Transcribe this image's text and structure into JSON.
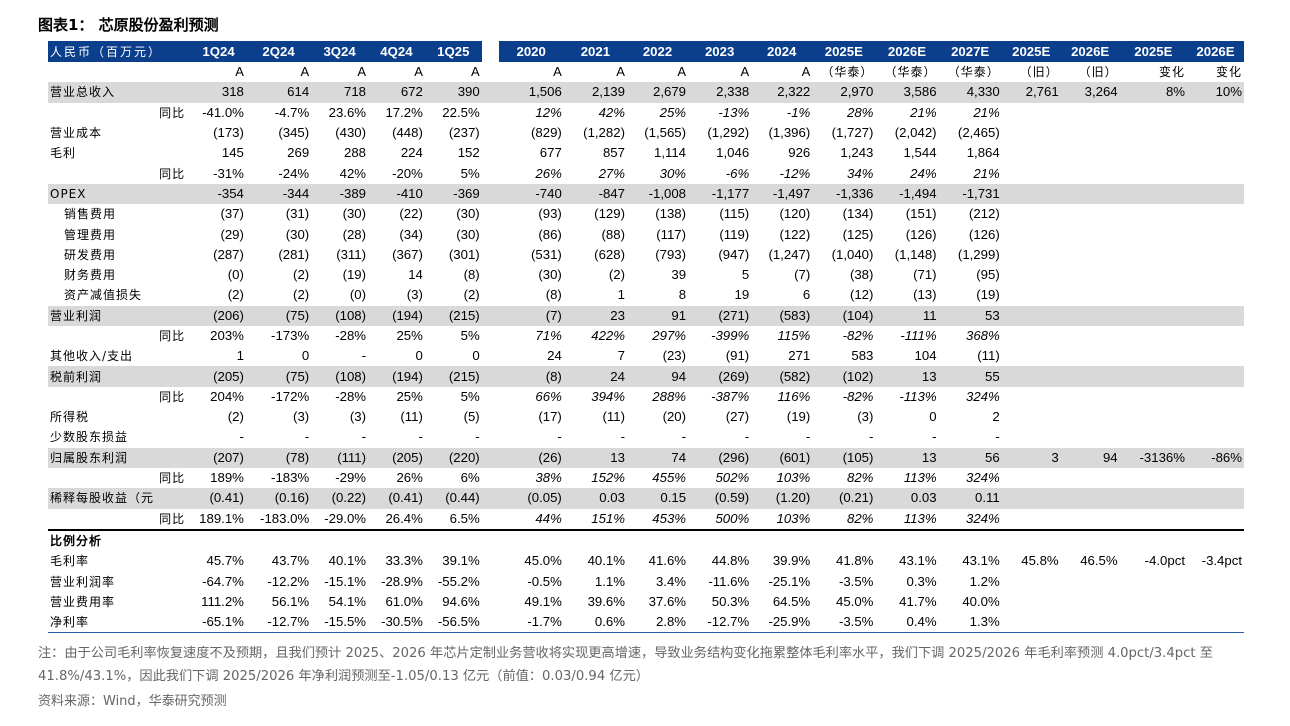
{
  "title": "图表1： 芯原股份盈利预测",
  "header_row1": [
    "人民币（百万元）",
    "1Q24",
    "2Q24",
    "3Q24",
    "4Q24",
    "1Q25",
    "",
    "2020",
    "2021",
    "2022",
    "2023",
    "2024",
    "2025E",
    "2026E",
    "2027E",
    "2025E",
    "2026E",
    "2025E",
    "2026E"
  ],
  "header_row2": [
    "",
    "A",
    "A",
    "A",
    "A",
    "A",
    "",
    "A",
    "A",
    "A",
    "A",
    "A",
    "（华泰）",
    "（华泰）",
    "（华泰）",
    "（旧）",
    "（旧）",
    "变化",
    "变化"
  ],
  "rows": [
    {
      "label": "营业总收入",
      "style": "lbl shade",
      "cells": [
        "318",
        "614",
        "718",
        "672",
        "390",
        "",
        "1,506",
        "2,139",
        "2,679",
        "2,338",
        "2,322",
        "2,970",
        "3,586",
        "4,330",
        "2,761",
        "3,264",
        "8%",
        "10%"
      ]
    },
    {
      "label": "同比",
      "style": "sub",
      "cells": [
        "-41.0%",
        "-4.7%",
        "23.6%",
        "17.2%",
        "22.5%",
        "",
        "12%",
        "42%",
        "25%",
        "-13%",
        "-1%",
        "28%",
        "21%",
        "21%",
        "",
        "",
        "",
        ""
      ],
      "italic_annual": true
    },
    {
      "label": "营业成本",
      "style": "lbl",
      "cells": [
        "(173)",
        "(345)",
        "(430)",
        "(448)",
        "(237)",
        "",
        "(829)",
        "(1,282)",
        "(1,565)",
        "(1,292)",
        "(1,396)",
        "(1,727)",
        "(2,042)",
        "(2,465)",
        "",
        "",
        "",
        ""
      ]
    },
    {
      "label": "毛利",
      "style": "lbl",
      "cells": [
        "145",
        "269",
        "288",
        "224",
        "152",
        "",
        "677",
        "857",
        "1,114",
        "1,046",
        "926",
        "1,243",
        "1,544",
        "1,864",
        "",
        "",
        "",
        ""
      ]
    },
    {
      "label": "同比",
      "style": "sub",
      "cells": [
        "-31%",
        "-24%",
        "42%",
        "-20%",
        "5%",
        "",
        "26%",
        "27%",
        "30%",
        "-6%",
        "-12%",
        "34%",
        "24%",
        "21%",
        "",
        "",
        "",
        ""
      ],
      "italic_annual": true
    },
    {
      "label": "OPEX",
      "style": "lbl shade",
      "cells": [
        "-354",
        "-344",
        "-389",
        "-410",
        "-369",
        "",
        "-740",
        "-847",
        "-1,008",
        "-1,177",
        "-1,497",
        "-1,336",
        "-1,494",
        "-1,731",
        "",
        "",
        "",
        ""
      ]
    },
    {
      "label": "销售费用",
      "style": "ind",
      "cells": [
        "(37)",
        "(31)",
        "(30)",
        "(22)",
        "(30)",
        "",
        "(93)",
        "(129)",
        "(138)",
        "(115)",
        "(120)",
        "(134)",
        "(151)",
        "(212)",
        "",
        "",
        "",
        ""
      ]
    },
    {
      "label": "管理费用",
      "style": "ind",
      "cells": [
        "(29)",
        "(30)",
        "(28)",
        "(34)",
        "(30)",
        "",
        "(86)",
        "(88)",
        "(117)",
        "(119)",
        "(122)",
        "(125)",
        "(126)",
        "(126)",
        "",
        "",
        "",
        ""
      ]
    },
    {
      "label": "研发费用",
      "style": "ind",
      "cells": [
        "(287)",
        "(281)",
        "(311)",
        "(367)",
        "(301)",
        "",
        "(531)",
        "(628)",
        "(793)",
        "(947)",
        "(1,247)",
        "(1,040)",
        "(1,148)",
        "(1,299)",
        "",
        "",
        "",
        ""
      ]
    },
    {
      "label": "财务费用",
      "style": "ind",
      "cells": [
        "(0)",
        "(2)",
        "(19)",
        "14",
        "(8)",
        "",
        "(30)",
        "(2)",
        "39",
        "5",
        "(7)",
        "(38)",
        "(71)",
        "(95)",
        "",
        "",
        "",
        ""
      ]
    },
    {
      "label": "资产减值损失",
      "style": "ind",
      "cells": [
        "(2)",
        "(2)",
        "(0)",
        "(3)",
        "(2)",
        "",
        "(8)",
        "1",
        "8",
        "19",
        "6",
        "(12)",
        "(13)",
        "(19)",
        "",
        "",
        "",
        ""
      ]
    },
    {
      "label": "营业利润",
      "style": "lbl shade",
      "cells": [
        "(206)",
        "(75)",
        "(108)",
        "(194)",
        "(215)",
        "",
        "(7)",
        "23",
        "91",
        "(271)",
        "(583)",
        "(104)",
        "11",
        "53",
        "",
        "",
        "",
        ""
      ]
    },
    {
      "label": "同比",
      "style": "sub",
      "cells": [
        "203%",
        "-173%",
        "-28%",
        "25%",
        "5%",
        "",
        "71%",
        "422%",
        "297%",
        "-399%",
        "115%",
        "-82%",
        "-111%",
        "368%",
        "",
        "",
        "",
        ""
      ],
      "italic_annual": true
    },
    {
      "label": "其他收入/支出",
      "style": "lbl",
      "cells": [
        "1",
        "0",
        "-",
        "0",
        "0",
        "",
        "24",
        "7",
        "(23)",
        "(91)",
        "271",
        "583",
        "104",
        "(11)",
        "",
        "",
        "",
        ""
      ]
    },
    {
      "label": "税前利润",
      "style": "lbl shade",
      "cells": [
        "(205)",
        "(75)",
        "(108)",
        "(194)",
        "(215)",
        "",
        "(8)",
        "24",
        "94",
        "(269)",
        "(582)",
        "(102)",
        "13",
        "55",
        "",
        "",
        "",
        ""
      ]
    },
    {
      "label": "同比",
      "style": "sub",
      "cells": [
        "204%",
        "-172%",
        "-28%",
        "25%",
        "5%",
        "",
        "66%",
        "394%",
        "288%",
        "-387%",
        "116%",
        "-82%",
        "-113%",
        "324%",
        "",
        "",
        "",
        ""
      ],
      "italic_annual": true
    },
    {
      "label": "所得税",
      "style": "lbl",
      "cells": [
        "(2)",
        "(3)",
        "(3)",
        "(11)",
        "(5)",
        "",
        "(17)",
        "(11)",
        "(20)",
        "(27)",
        "(19)",
        "(3)",
        "0",
        "2",
        "",
        "",
        "",
        ""
      ]
    },
    {
      "label": "少数股东损益",
      "style": "lbl",
      "cells": [
        "-",
        "-",
        "-",
        "-",
        "-",
        "",
        "-",
        "-",
        "-",
        "-",
        "-",
        "-",
        "-",
        "-",
        "",
        "",
        "",
        ""
      ]
    },
    {
      "label": "归属股东利润",
      "style": "lbl shade",
      "cells": [
        "(207)",
        "(78)",
        "(111)",
        "(205)",
        "(220)",
        "",
        "(26)",
        "13",
        "74",
        "(296)",
        "(601)",
        "(105)",
        "13",
        "56",
        "3",
        "94",
        "-3136%",
        "-86%"
      ]
    },
    {
      "label": "同比",
      "style": "sub",
      "cells": [
        "189%",
        "-183%",
        "-29%",
        "26%",
        "6%",
        "",
        "38%",
        "152%",
        "455%",
        "502%",
        "103%",
        "82%",
        "113%",
        "324%",
        "",
        "",
        "",
        ""
      ],
      "italic_annual": true
    },
    {
      "label": "稀释每股收益（元",
      "style": "lbl shade",
      "cells": [
        "(0.41)",
        "(0.16)",
        "(0.22)",
        "(0.41)",
        "(0.44)",
        "",
        "(0.05)",
        "0.03",
        "0.15",
        "(0.59)",
        "(1.20)",
        "(0.21)",
        "0.03",
        "0.11",
        "",
        "",
        "",
        ""
      ]
    },
    {
      "label": "同比",
      "style": "sub",
      "cells": [
        "189.1%",
        "-183.0%",
        "-29.0%",
        "26.4%",
        "6.5%",
        "",
        "44%",
        "151%",
        "453%",
        "500%",
        "103%",
        "82%",
        "113%",
        "324%",
        "",
        "",
        "",
        ""
      ],
      "italic_annual": true
    },
    {
      "label": "比例分析",
      "style": "lbl section",
      "cells": [
        "",
        "",
        "",
        "",
        "",
        "",
        "",
        "",
        "",
        "",
        "",
        "",
        "",
        "",
        "",
        "",
        "",
        ""
      ]
    },
    {
      "label": "毛利率",
      "style": "lbl",
      "cells": [
        "45.7%",
        "43.7%",
        "40.1%",
        "33.3%",
        "39.1%",
        "",
        "45.0%",
        "40.1%",
        "41.6%",
        "44.8%",
        "39.9%",
        "41.8%",
        "43.1%",
        "43.1%",
        "45.8%",
        "46.5%",
        "-4.0pct",
        "-3.4pct"
      ]
    },
    {
      "label": "营业利润率",
      "style": "lbl",
      "cells": [
        "-64.7%",
        "-12.2%",
        "-15.1%",
        "-28.9%",
        "-55.2%",
        "",
        "-0.5%",
        "1.1%",
        "3.4%",
        "-11.6%",
        "-25.1%",
        "-3.5%",
        "0.3%",
        "1.2%",
        "",
        "",
        "",
        ""
      ]
    },
    {
      "label": "营业费用率",
      "style": "lbl",
      "cells": [
        "111.2%",
        "56.1%",
        "54.1%",
        "61.0%",
        "94.6%",
        "",
        "49.1%",
        "39.6%",
        "37.6%",
        "50.3%",
        "64.5%",
        "45.0%",
        "41.7%",
        "40.0%",
        "",
        "",
        "",
        ""
      ]
    },
    {
      "label": "净利率",
      "style": "lbl lastrow",
      "cells": [
        "-65.1%",
        "-12.7%",
        "-15.5%",
        "-30.5%",
        "-56.5%",
        "",
        "-1.7%",
        "0.6%",
        "2.8%",
        "-12.7%",
        "-25.9%",
        "-3.5%",
        "0.4%",
        "1.3%",
        "",
        "",
        "",
        ""
      ]
    }
  ],
  "note": "注：由于公司毛利率恢复速度不及预期，且我们预计 2025、2026 年芯片定制业务营收将实现更高增速，导致业务结构变化拖累整体毛利率水平，我们下调 2025/2026 年毛利率预测 4.0pct/3.4pct 至 41.8%/43.1%，因此我们下调 2025/2026 年净利润预测至-1.05/0.13 亿元（前值：0.03/0.94 亿元）",
  "source": "资料来源：Wind，华泰研究预测"
}
